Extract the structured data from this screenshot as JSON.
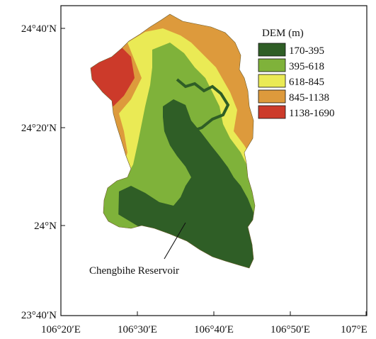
{
  "map": {
    "x_ticks": [
      "106°20′E",
      "106°30′E",
      "106°40′E",
      "106°50′E",
      "107°E"
    ],
    "y_ticks": [
      "24°40′N",
      "24°20′N",
      "24°N",
      "23°40′N"
    ],
    "legend": {
      "title": "DEM (m)",
      "classes": [
        {
          "label": "170-395",
          "color": "#2f5e26"
        },
        {
          "label": "395-618",
          "color": "#7fb23a"
        },
        {
          "label": "618-845",
          "color": "#eaea55"
        },
        {
          "label": "845-1138",
          "color": "#dd9a3c"
        },
        {
          "label": "1138-1690",
          "color": "#cc3a2a"
        }
      ]
    },
    "annotation": "Chengbihe Reservoir"
  }
}
